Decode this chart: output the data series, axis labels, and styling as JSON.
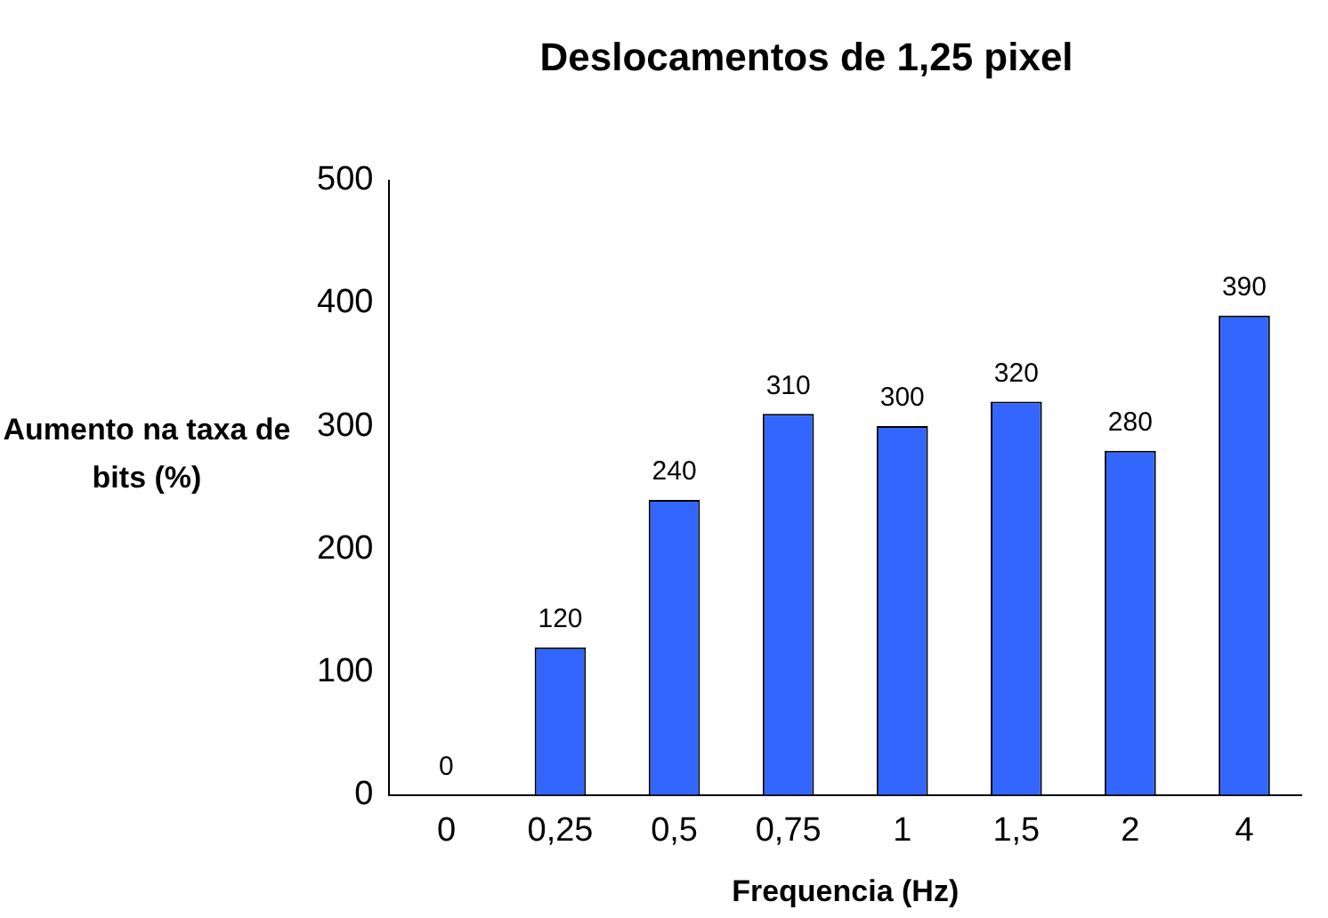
{
  "chart_data": {
    "type": "bar",
    "title": "Deslocamentos de 1,25 pixel",
    "xlabel": "Frequencia (Hz)",
    "ylabel": "Aumento na taxa de bits (%)",
    "categories": [
      "0",
      "0,25",
      "0,5",
      "0,75",
      "1",
      "1,5",
      "2",
      "4"
    ],
    "values": [
      0,
      120,
      240,
      310,
      300,
      320,
      280,
      390
    ],
    "color": "#3366ff",
    "ylim": [
      0,
      500
    ],
    "yticks": [
      0,
      100,
      200,
      300,
      400,
      500
    ],
    "grid": false,
    "legend": false,
    "data_labels": true
  }
}
